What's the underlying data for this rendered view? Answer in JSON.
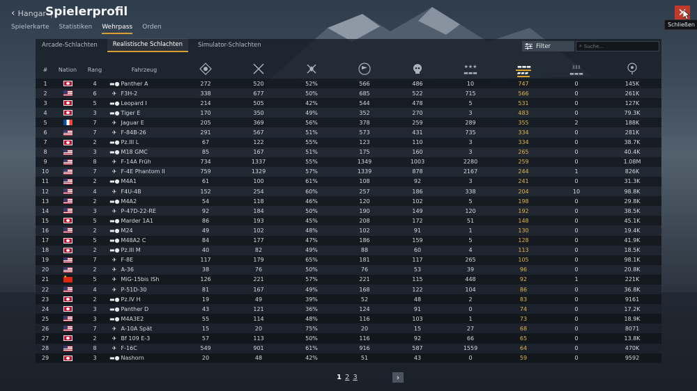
{
  "header": {
    "back_label": "Hangar",
    "title": "Spielerprofil",
    "tabs": [
      "Spielerkarte",
      "Statistiken",
      "Wehrpass",
      "Orden"
    ],
    "active_tab": "Wehrpass"
  },
  "close": {
    "tooltip": "Schließen"
  },
  "subtabs": [
    "Arcade-Schlachten",
    "Realistische Schlachten",
    "Simulator-Schlachten"
  ],
  "active_subtab": "Realistische Schlachten",
  "filter_label": "Filter",
  "search_placeholder": "Suche...",
  "columns": {
    "num": "#",
    "nation": "Nation",
    "rank": "Rang",
    "vehicle": "Fahrzeug",
    "icons": [
      "respawns-icon",
      "battles-icon",
      "victories-icon",
      "flag-icon",
      "skull-icon",
      "stars-icon",
      "ground-kills-icon",
      "naval-icon",
      "balloon-icon"
    ]
  },
  "rows": [
    {
      "n": "1",
      "nation": "de",
      "rank": "4",
      "type": "tank",
      "name": "Panther A",
      "c": [
        "272",
        "520",
        "52%",
        "566",
        "486",
        "10",
        "747",
        "0",
        "145K"
      ]
    },
    {
      "n": "2",
      "nation": "us",
      "rank": "6",
      "type": "jet",
      "name": "F3H-2",
      "c": [
        "338",
        "677",
        "50%",
        "685",
        "522",
        "715",
        "566",
        "0",
        "261K"
      ]
    },
    {
      "n": "3",
      "nation": "de",
      "rank": "5",
      "type": "tank",
      "name": "Leopard I",
      "c": [
        "214",
        "505",
        "42%",
        "544",
        "478",
        "5",
        "531",
        "0",
        "127K"
      ]
    },
    {
      "n": "4",
      "nation": "de",
      "rank": "3",
      "type": "tank",
      "name": "Tiger E",
      "c": [
        "170",
        "350",
        "49%",
        "352",
        "270",
        "3",
        "483",
        "0",
        "79.3K"
      ]
    },
    {
      "n": "5",
      "nation": "fr",
      "rank": "7",
      "type": "jet",
      "name": "Jaguar E",
      "c": [
        "205",
        "369",
        "56%",
        "378",
        "259",
        "289",
        "355",
        "2",
        "188K"
      ]
    },
    {
      "n": "6",
      "nation": "us",
      "rank": "7",
      "type": "jet",
      "name": "F-84B-26",
      "c": [
        "291",
        "567",
        "51%",
        "573",
        "431",
        "735",
        "334",
        "0",
        "281K"
      ]
    },
    {
      "n": "7",
      "nation": "de",
      "rank": "2",
      "type": "tank",
      "name": "Pz.III L",
      "c": [
        "67",
        "122",
        "55%",
        "123",
        "110",
        "3",
        "334",
        "0",
        "38.7K"
      ]
    },
    {
      "n": "8",
      "nation": "us",
      "rank": "3",
      "type": "tank",
      "name": "M18 GMC",
      "c": [
        "85",
        "167",
        "51%",
        "175",
        "160",
        "3",
        "265",
        "0",
        "40.4K"
      ]
    },
    {
      "n": "9",
      "nation": "us",
      "rank": "8",
      "type": "jet",
      "name": "F-14A Früh",
      "c": [
        "734",
        "1337",
        "55%",
        "1349",
        "1003",
        "2280",
        "259",
        "0",
        "1.08M"
      ]
    },
    {
      "n": "10",
      "nation": "us",
      "rank": "7",
      "type": "jet",
      "name": "F-4E Phantom II",
      "c": [
        "759",
        "1329",
        "57%",
        "1339",
        "878",
        "2167",
        "244",
        "1",
        "826K"
      ]
    },
    {
      "n": "11",
      "nation": "us",
      "rank": "2",
      "type": "tank",
      "name": "M4A1",
      "c": [
        "61",
        "100",
        "61%",
        "108",
        "92",
        "3",
        "241",
        "0",
        "31.3K"
      ]
    },
    {
      "n": "12",
      "nation": "us",
      "rank": "4",
      "type": "plane",
      "name": "F4U-4B",
      "c": [
        "152",
        "254",
        "60%",
        "257",
        "186",
        "338",
        "204",
        "10",
        "98.8K"
      ]
    },
    {
      "n": "13",
      "nation": "us",
      "rank": "2",
      "type": "tank",
      "name": "M4A2",
      "c": [
        "54",
        "118",
        "46%",
        "120",
        "102",
        "5",
        "198",
        "0",
        "29.8K"
      ]
    },
    {
      "n": "14",
      "nation": "us",
      "rank": "3",
      "type": "plane",
      "name": "P-47D-22-RE",
      "c": [
        "92",
        "184",
        "50%",
        "190",
        "149",
        "120",
        "192",
        "0",
        "38.5K"
      ]
    },
    {
      "n": "15",
      "nation": "de",
      "rank": "5",
      "type": "tank",
      "name": "Marder 1A1",
      "c": [
        "86",
        "193",
        "45%",
        "208",
        "172",
        "51",
        "148",
        "0",
        "45.1K"
      ]
    },
    {
      "n": "16",
      "nation": "us",
      "rank": "2",
      "type": "tank",
      "name": "M24",
      "c": [
        "49",
        "102",
        "48%",
        "102",
        "91",
        "1",
        "130",
        "0",
        "19.4K"
      ]
    },
    {
      "n": "17",
      "nation": "de",
      "rank": "5",
      "type": "tank",
      "name": "M48A2 C",
      "c": [
        "84",
        "177",
        "47%",
        "186",
        "159",
        "5",
        "128",
        "0",
        "41.9K"
      ]
    },
    {
      "n": "18",
      "nation": "de",
      "rank": "2",
      "type": "tank",
      "name": "Pz.III M",
      "c": [
        "40",
        "82",
        "49%",
        "88",
        "60",
        "4",
        "113",
        "0",
        "18.5K"
      ]
    },
    {
      "n": "19",
      "nation": "us",
      "rank": "7",
      "type": "jet",
      "name": "F-8E",
      "c": [
        "117",
        "179",
        "65%",
        "181",
        "117",
        "265",
        "105",
        "0",
        "98.1K"
      ]
    },
    {
      "n": "20",
      "nation": "us",
      "rank": "2",
      "type": "plane",
      "name": "A-36",
      "c": [
        "38",
        "76",
        "50%",
        "76",
        "53",
        "39",
        "96",
        "0",
        "20.8K"
      ]
    },
    {
      "n": "21",
      "nation": "cn",
      "rank": "5",
      "type": "jet",
      "name": "MiG-15bis ISh",
      "c": [
        "126",
        "221",
        "57%",
        "221",
        "115",
        "448",
        "92",
        "1",
        "221K"
      ]
    },
    {
      "n": "22",
      "nation": "us",
      "rank": "4",
      "type": "plane",
      "name": "P-51D-30",
      "c": [
        "81",
        "167",
        "49%",
        "168",
        "122",
        "104",
        "86",
        "0",
        "36.8K"
      ]
    },
    {
      "n": "23",
      "nation": "de",
      "rank": "2",
      "type": "tank",
      "name": "Pz.IV H",
      "c": [
        "19",
        "49",
        "39%",
        "52",
        "48",
        "2",
        "83",
        "0",
        "9161"
      ]
    },
    {
      "n": "24",
      "nation": "de",
      "rank": "3",
      "type": "tank",
      "name": "Panther D",
      "c": [
        "43",
        "121",
        "36%",
        "124",
        "91",
        "0",
        "74",
        "0",
        "17.2K"
      ]
    },
    {
      "n": "25",
      "nation": "us",
      "rank": "3",
      "type": "tank",
      "name": "M4A3E2",
      "c": [
        "55",
        "114",
        "48%",
        "116",
        "103",
        "1",
        "73",
        "0",
        "18.9K"
      ]
    },
    {
      "n": "26",
      "nation": "us",
      "rank": "7",
      "type": "jet",
      "name": "A-10A Spät",
      "c": [
        "15",
        "20",
        "75%",
        "20",
        "15",
        "27",
        "68",
        "0",
        "8071"
      ]
    },
    {
      "n": "27",
      "nation": "de",
      "rank": "2",
      "type": "plane",
      "name": "Bf 109 E-3",
      "c": [
        "57",
        "113",
        "50%",
        "116",
        "92",
        "66",
        "65",
        "0",
        "13.8K"
      ]
    },
    {
      "n": "28",
      "nation": "us",
      "rank": "8",
      "type": "jet",
      "name": "F-16C",
      "c": [
        "549",
        "901",
        "61%",
        "916",
        "587",
        "1559",
        "64",
        "0",
        "470K"
      ]
    },
    {
      "n": "29",
      "nation": "de",
      "rank": "3",
      "type": "tank",
      "name": "Nashorn",
      "c": [
        "20",
        "48",
        "42%",
        "51",
        "43",
        "0",
        "59",
        "0",
        "9592"
      ]
    }
  ],
  "pagination": {
    "pages": [
      "1",
      "2",
      "3"
    ],
    "current": "1",
    "next": "›"
  },
  "colors": {
    "accent": "#d9a030",
    "highlight_column": "#e0b54a",
    "close": "#c0392b"
  }
}
